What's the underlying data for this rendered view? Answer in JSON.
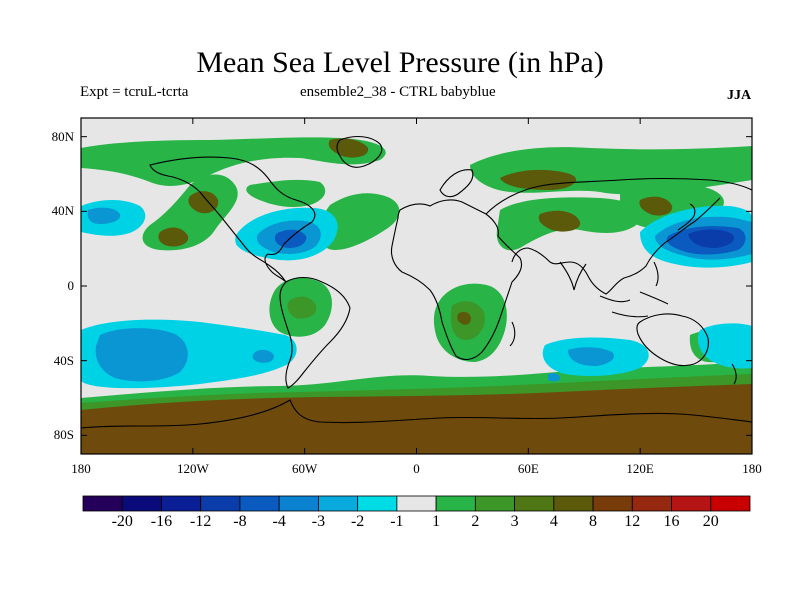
{
  "title": "Mean Sea Level Pressure (in hPa)",
  "subtitle_left": "Expt = tcruL-tcrta",
  "subtitle_center": "ensemble2_38 - CTRL babyblue",
  "subtitle_right": "JJA",
  "y_ticks": [
    {
      "value": 80,
      "label": "80N"
    },
    {
      "value": 40,
      "label": "40N"
    },
    {
      "value": 0,
      "label": "0"
    },
    {
      "value": -40,
      "label": "40S"
    },
    {
      "value": -80,
      "label": "80S"
    }
  ],
  "x_ticks": [
    {
      "value": -180,
      "label": "180"
    },
    {
      "value": -120,
      "label": "120W"
    },
    {
      "value": -60,
      "label": "60W"
    },
    {
      "value": 0,
      "label": "0"
    },
    {
      "value": 60,
      "label": "60E"
    },
    {
      "value": 120,
      "label": "120E"
    },
    {
      "value": 180,
      "label": "180"
    }
  ],
  "colorbar": {
    "colors": [
      "#24005a",
      "#0a0a7a",
      "#0a1e96",
      "#0a3caa",
      "#0a5ac0",
      "#0a82d0",
      "#0aaade",
      "#00dce6",
      "#e6e6e6",
      "#28b446",
      "#3c9628",
      "#4f7814",
      "#5a5a0a",
      "#783c0a",
      "#962810",
      "#b41414",
      "#c80000"
    ],
    "labels": [
      "-20",
      "-16",
      "-12",
      "-8",
      "-4",
      "-3",
      "-2",
      "-1",
      "1",
      "2",
      "3",
      "4",
      "8",
      "12",
      "16",
      "20"
    ]
  },
  "map_colors": {
    "background": "#e6e6e6",
    "light_green": "#28b446",
    "mid_green": "#3c9628",
    "olive": "#5a5a0a",
    "brown": "#6e4a0c",
    "cyan": "#00d2e6",
    "mid_blue": "#0a96d2",
    "blue": "#0a5ac0",
    "dark_blue": "#0a3caa",
    "coast": "#000000"
  }
}
